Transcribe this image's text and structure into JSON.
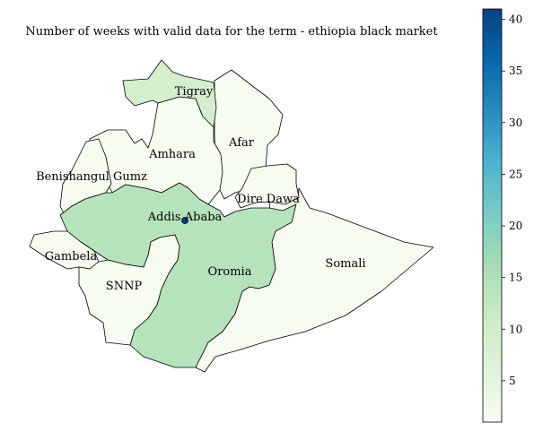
{
  "title": "Number of weeks with valid data for the term - ethiopia black market",
  "colorbar": {
    "min": 1,
    "max": 41,
    "ticks": [
      5,
      10,
      15,
      20,
      25,
      30,
      35,
      40
    ],
    "tick_labels": [
      "5",
      "10",
      "15",
      "20",
      "25",
      "30",
      "35",
      "40"
    ],
    "colors": [
      "#f7fcf0",
      "#e0f3db",
      "#ccebc5",
      "#a8ddb5",
      "#7bccc4",
      "#4eb3d3",
      "#2b8cbe",
      "#0868ac",
      "#084081"
    ]
  },
  "regions": [
    {
      "name": "Tigray",
      "label": "Tigray",
      "value": 9
    },
    {
      "name": "Afar",
      "label": "Afar",
      "value": 1
    },
    {
      "name": "Amhara",
      "label": "Amhara",
      "value": 1
    },
    {
      "name": "Benishangul Gumz",
      "label": "Benishangul Gumz",
      "value": 1
    },
    {
      "name": "Dire Dawa",
      "label": "Dire Dawa",
      "value": 1
    },
    {
      "name": "Addis Ababa",
      "label": "Addis Ababa",
      "value": 41
    },
    {
      "name": "Gambela",
      "label": "Gambela",
      "value": 1
    },
    {
      "name": "SNNP",
      "label": "SNNP",
      "value": 1
    },
    {
      "name": "Oromia",
      "label": "Oromia",
      "value": 14
    },
    {
      "name": "Somali",
      "label": "Somali",
      "value": 1
    }
  ]
}
